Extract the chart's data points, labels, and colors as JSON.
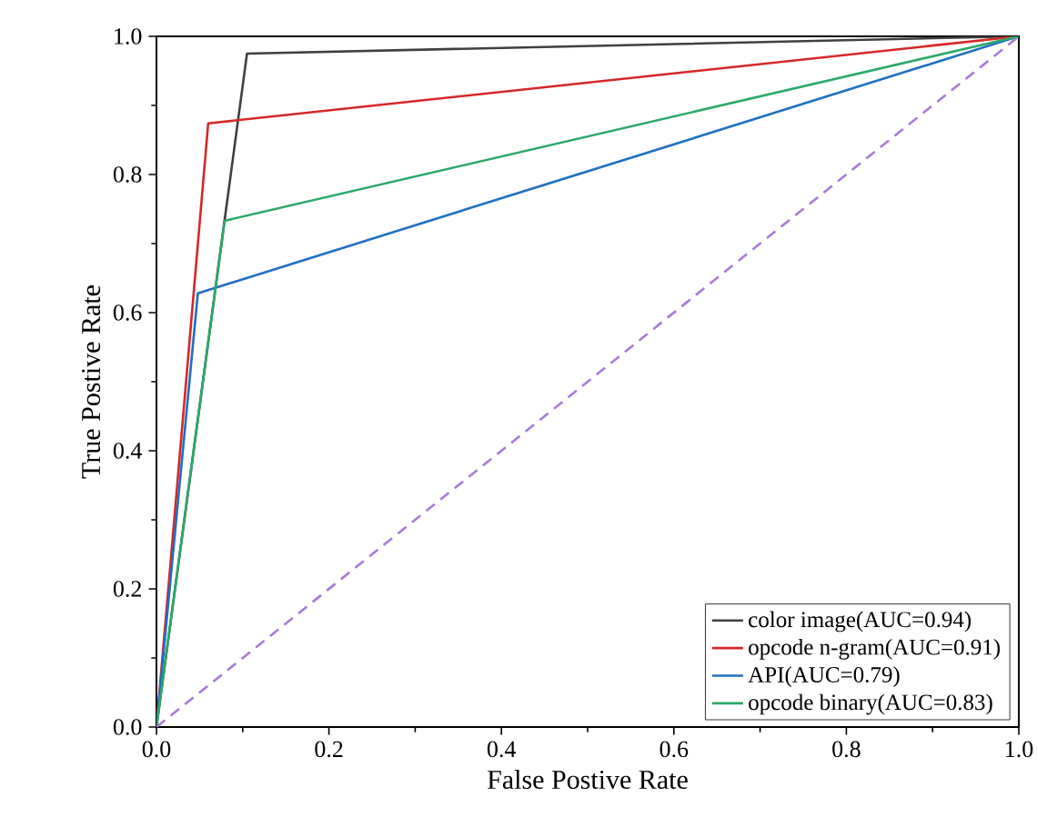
{
  "chart_data": {
    "type": "line",
    "xlabel": "False Postive Rate",
    "ylabel": "True Postive Rate",
    "xlim": [
      0,
      1
    ],
    "ylim": [
      0,
      1
    ],
    "xticks": [
      {
        "value": 0,
        "label": "0.0"
      },
      {
        "value": 0.2,
        "label": "0.2"
      },
      {
        "value": 0.4,
        "label": "0.4"
      },
      {
        "value": 0.6,
        "label": "0.6"
      },
      {
        "value": 0.8,
        "label": "0.8"
      },
      {
        "value": 1,
        "label": "1.0"
      }
    ],
    "yticks": [
      {
        "value": 0,
        "label": "0.0"
      },
      {
        "value": 0.2,
        "label": "0.2"
      },
      {
        "value": 0.4,
        "label": "0.4"
      },
      {
        "value": 0.6,
        "label": "0.6"
      },
      {
        "value": 0.8,
        "label": "0.8"
      },
      {
        "value": 1,
        "label": "1.0"
      }
    ],
    "grid": false,
    "legend": "bottom right",
    "marker": "none",
    "series": [
      {
        "name": "color image(AUC=0.94)",
        "color": "#404040",
        "x": [
          0,
          0.105,
          1
        ],
        "values": [
          0,
          0.975,
          1
        ]
      },
      {
        "name": "opcode n-gram(AUC=0.91)",
        "color": "#d62728",
        "x": [
          0,
          0.06,
          1
        ],
        "values": [
          0,
          0.874,
          1
        ]
      },
      {
        "name": "API(AUC=0.79)",
        "color": "#1f6fc4",
        "x": [
          0,
          0.048,
          1
        ],
        "values": [
          0,
          0.628,
          1
        ]
      },
      {
        "name": "opcode binary(AUC=0.83)",
        "color": "#2ca86a",
        "x": [
          0,
          0.079,
          1
        ],
        "values": [
          0,
          0.733,
          1
        ]
      },
      {
        "color": "#a77bd8",
        "line_style": "dashed",
        "x": [
          0,
          1
        ],
        "values": [
          0,
          1
        ]
      }
    ]
  }
}
